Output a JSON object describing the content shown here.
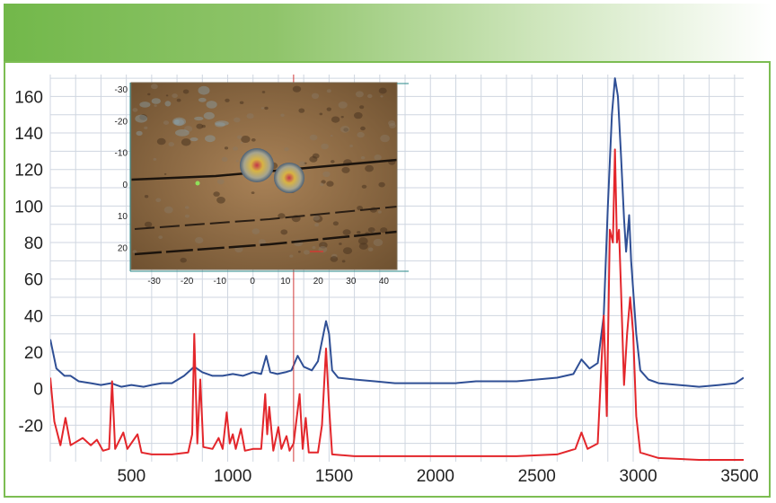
{
  "colors": {
    "banner_start": "#72b84a",
    "frame": "#7cbd52",
    "grid": "#cfd6e0",
    "series_blue": "#2f4f95",
    "series_red": "#e3262b",
    "marker": "#d23a3a"
  },
  "chart_data": [
    {
      "type": "line",
      "title": "",
      "xlabel": "",
      "ylabel": "",
      "xlim": [
        100,
        3520
      ],
      "ylim": [
        -40,
        172
      ],
      "xticks": [
        500,
        1000,
        1500,
        2000,
        2500,
        3000,
        3500
      ],
      "yticks": [
        -20,
        0,
        20,
        40,
        60,
        80,
        100,
        120,
        140,
        160
      ],
      "grid": true,
      "legend": "none",
      "marker_x": 1300,
      "series": [
        {
          "color": "#2f4f95",
          "points": [
            [
              100,
              27
            ],
            [
              130,
              11
            ],
            [
              170,
              7
            ],
            [
              200,
              7
            ],
            [
              240,
              4
            ],
            [
              300,
              3
            ],
            [
              350,
              2
            ],
            [
              400,
              3
            ],
            [
              450,
              1
            ],
            [
              500,
              2
            ],
            [
              560,
              1
            ],
            [
              600,
              2
            ],
            [
              650,
              3
            ],
            [
              700,
              3
            ],
            [
              760,
              7
            ],
            [
              790,
              10
            ],
            [
              810,
              12
            ],
            [
              850,
              9
            ],
            [
              900,
              7
            ],
            [
              950,
              7
            ],
            [
              1000,
              8
            ],
            [
              1050,
              7
            ],
            [
              1100,
              9
            ],
            [
              1140,
              8
            ],
            [
              1165,
              18
            ],
            [
              1185,
              9
            ],
            [
              1220,
              8
            ],
            [
              1260,
              9
            ],
            [
              1290,
              10
            ],
            [
              1320,
              18
            ],
            [
              1350,
              12
            ],
            [
              1390,
              10
            ],
            [
              1420,
              15
            ],
            [
              1440,
              26
            ],
            [
              1460,
              37
            ],
            [
              1475,
              30
            ],
            [
              1490,
              10
            ],
            [
              1520,
              6
            ],
            [
              1600,
              5
            ],
            [
              1700,
              4
            ],
            [
              1800,
              3
            ],
            [
              1900,
              3
            ],
            [
              2000,
              3
            ],
            [
              2100,
              3
            ],
            [
              2200,
              4
            ],
            [
              2300,
              4
            ],
            [
              2400,
              4
            ],
            [
              2500,
              5
            ],
            [
              2600,
              6
            ],
            [
              2680,
              8
            ],
            [
              2720,
              16
            ],
            [
              2760,
              11
            ],
            [
              2800,
              14
            ],
            [
              2830,
              40
            ],
            [
              2850,
              100
            ],
            [
              2870,
              150
            ],
            [
              2885,
              170
            ],
            [
              2900,
              160
            ],
            [
              2915,
              128
            ],
            [
              2930,
              93
            ],
            [
              2940,
              75
            ],
            [
              2955,
              95
            ],
            [
              2965,
              70
            ],
            [
              2990,
              30
            ],
            [
              3010,
              10
            ],
            [
              3050,
              5
            ],
            [
              3100,
              3
            ],
            [
              3200,
              2
            ],
            [
              3300,
              1
            ],
            [
              3400,
              2
            ],
            [
              3480,
              3
            ],
            [
              3520,
              6
            ]
          ]
        },
        {
          "color": "#e3262b",
          "points": [
            [
              100,
              6
            ],
            [
              120,
              -18
            ],
            [
              150,
              -31
            ],
            [
              175,
              -16
            ],
            [
              200,
              -31
            ],
            [
              260,
              -27
            ],
            [
              300,
              -31
            ],
            [
              330,
              -28
            ],
            [
              360,
              -34
            ],
            [
              390,
              -33
            ],
            [
              405,
              4
            ],
            [
              420,
              -33
            ],
            [
              460,
              -24
            ],
            [
              480,
              -33
            ],
            [
              530,
              -25
            ],
            [
              550,
              -35
            ],
            [
              600,
              -36
            ],
            [
              700,
              -36
            ],
            [
              780,
              -35
            ],
            [
              800,
              -25
            ],
            [
              810,
              30
            ],
            [
              825,
              -30
            ],
            [
              840,
              5
            ],
            [
              855,
              -32
            ],
            [
              900,
              -33
            ],
            [
              930,
              -27
            ],
            [
              950,
              -33
            ],
            [
              970,
              -13
            ],
            [
              985,
              -30
            ],
            [
              1000,
              -25
            ],
            [
              1015,
              -33
            ],
            [
              1040,
              -22
            ],
            [
              1060,
              -34
            ],
            [
              1100,
              -33
            ],
            [
              1140,
              -33
            ],
            [
              1160,
              -3
            ],
            [
              1170,
              -25
            ],
            [
              1180,
              -10
            ],
            [
              1200,
              -34
            ],
            [
              1225,
              -21
            ],
            [
              1240,
              -33
            ],
            [
              1265,
              -26
            ],
            [
              1280,
              -34
            ],
            [
              1300,
              -30
            ],
            [
              1330,
              -3
            ],
            [
              1345,
              -33
            ],
            [
              1360,
              -16
            ],
            [
              1375,
              -35
            ],
            [
              1420,
              -35
            ],
            [
              1440,
              -20
            ],
            [
              1460,
              22
            ],
            [
              1475,
              -10
            ],
            [
              1490,
              -36
            ],
            [
              1600,
              -37
            ],
            [
              1800,
              -37
            ],
            [
              2000,
              -37
            ],
            [
              2200,
              -37
            ],
            [
              2400,
              -37
            ],
            [
              2600,
              -36
            ],
            [
              2690,
              -33
            ],
            [
              2720,
              -24
            ],
            [
              2750,
              -33
            ],
            [
              2800,
              -30
            ],
            [
              2830,
              40
            ],
            [
              2845,
              -15
            ],
            [
              2860,
              87
            ],
            [
              2875,
              80
            ],
            [
              2885,
              131
            ],
            [
              2895,
              80
            ],
            [
              2905,
              87
            ],
            [
              2915,
              55
            ],
            [
              2930,
              2
            ],
            [
              2945,
              30
            ],
            [
              2960,
              50
            ],
            [
              2975,
              30
            ],
            [
              2990,
              -15
            ],
            [
              3010,
              -35
            ],
            [
              3100,
              -38
            ],
            [
              3300,
              -39
            ],
            [
              3520,
              -39
            ]
          ]
        }
      ]
    },
    {
      "type": "heatmap",
      "title": "",
      "xlim": [
        -37,
        44
      ],
      "ylim": [
        -32,
        27
      ],
      "xticks": [
        -30,
        -20,
        -10,
        0,
        10,
        20,
        30,
        40
      ],
      "yticks": [
        -30,
        -20,
        -10,
        0,
        10,
        20
      ],
      "y_inverted": true,
      "features": [
        "optical microscope image",
        "two bright round particles near x=0 and x=10, y=-2"
      ]
    }
  ]
}
